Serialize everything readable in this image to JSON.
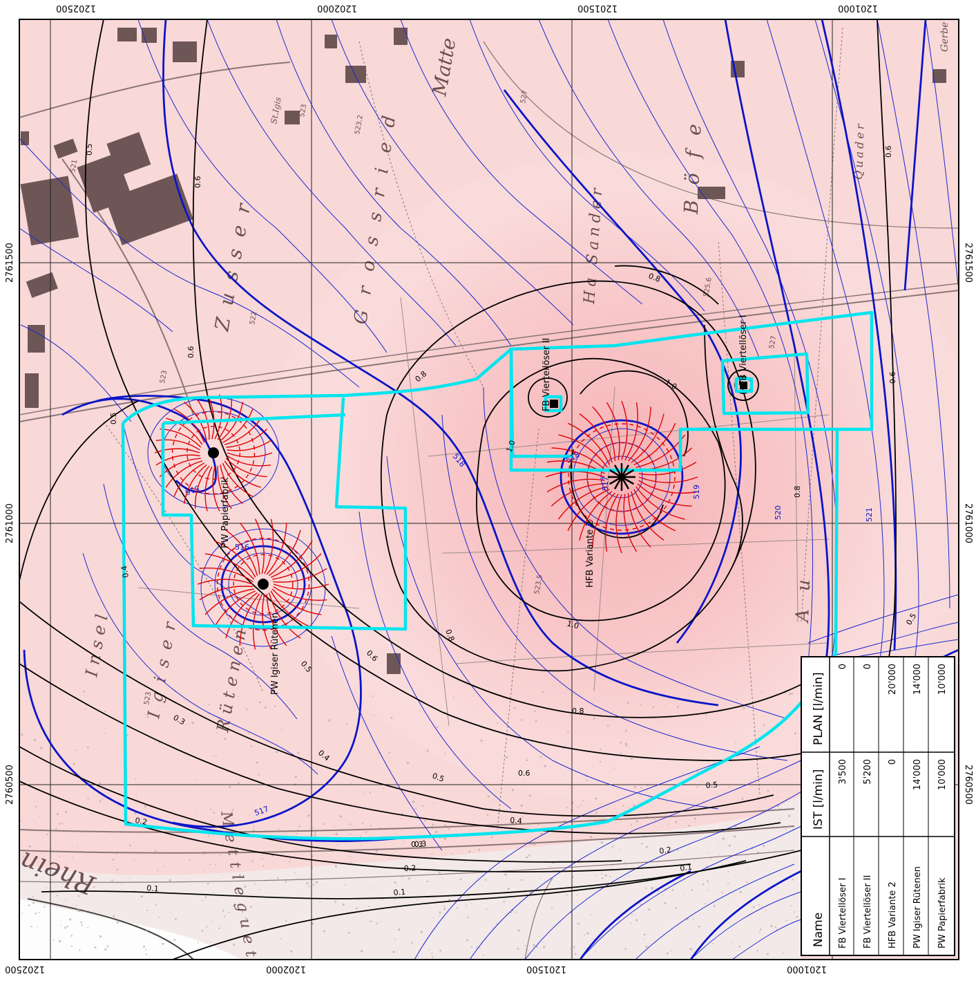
{
  "colors": {
    "background": "#f9d7d7",
    "iso_blue": "#0a14c8",
    "perimeter": "#00e5ee",
    "flow_red": "#e00000",
    "building": "#6e5656"
  },
  "coords": {
    "x_top": [
      "1202500",
      "1202000",
      "1201500",
      "1201000"
    ],
    "x_bottom": [
      "1202500",
      "1202000",
      "1201500",
      "1201000"
    ],
    "y_left": [
      "2761500",
      "2761000",
      "2760500"
    ],
    "y_right": [
      "2761500",
      "2761000",
      "2760500"
    ]
  },
  "place_names": [
    "Rhein",
    "Matte",
    "Zusser",
    "Grossried",
    "Ha Sander",
    "Böfe",
    "Au",
    "Insel",
    "Igiser",
    "Rütenen",
    "Mettleguet",
    "Gerbe",
    "Quader",
    "St.Igis"
  ],
  "spot_heights": [
    "523",
    "523.2",
    "527",
    "521",
    "522",
    "523",
    "523",
    "523.5",
    "527",
    "525.6"
  ],
  "contour_labels": [
    "0.5",
    "0.6",
    "0.6",
    "0.5",
    "0.4",
    "0.3",
    "0.2",
    "0.1",
    "0.1",
    "0.2",
    "0.3",
    "0.4",
    "0.5",
    "0.5",
    "0.6",
    "0.8",
    "0.8",
    "1.0",
    "1.0",
    "0.8",
    "1.0",
    "0.8",
    "0.6",
    "0.5",
    "0.4",
    "0.3",
    "0.2",
    "0.1",
    "0.8",
    "0.6",
    "0.5",
    "0.6"
  ],
  "iso_labels": [
    "516",
    "516",
    "517",
    "518",
    "518",
    "519",
    "520",
    "521",
    "517"
  ],
  "wells": {
    "papierfabrik": "PW Papierfabrik",
    "ruetenen": "PW Igiser Rütenen",
    "hfb": "HFB Variante 2",
    "fb2": "FB Viertellöser II",
    "fb1": "FB Viertellöser I"
  },
  "table": {
    "headers": [
      "Name",
      "IST [l/min]",
      "PLAN [l/min]"
    ],
    "rows": [
      {
        "name": "FB Viertellöser I",
        "ist": "3'500",
        "plan": "0"
      },
      {
        "name": "FB Viertellöser II",
        "ist": "5'200",
        "plan": "0"
      },
      {
        "name": "HFB Variante 2",
        "ist": "0",
        "plan": "20'000"
      },
      {
        "name": "PW Igiser Rütenen",
        "ist": "14'000",
        "plan": "14'000"
      },
      {
        "name": "PW Papierfabrik",
        "ist": "10'000",
        "plan": "10'000"
      }
    ]
  }
}
